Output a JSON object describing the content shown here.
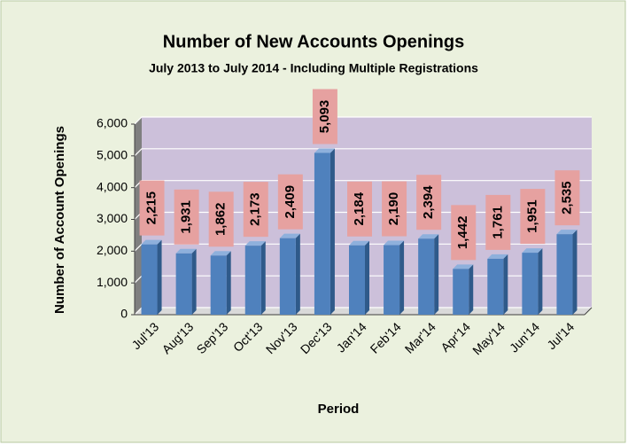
{
  "chart_data": {
    "type": "bar",
    "title": "Number of New Accounts Openings",
    "subtitle": "July 2013 to July 2014 - Including Multiple Registrations",
    "y_label": "Number of Account Openings",
    "x_label": "Period",
    "categories": [
      "Jul'13",
      "Aug'13",
      "Sep'13",
      "Oct'13",
      "Nov'13",
      "Dec'13",
      "Jan'14",
      "Feb'14",
      "Mar'14",
      "Apr'14",
      "May'14",
      "Jun'14",
      "Jul'14"
    ],
    "values": [
      2215,
      1931,
      1862,
      2173,
      2409,
      5093,
      2184,
      2190,
      2394,
      1442,
      1761,
      1951,
      2535
    ],
    "value_labels": [
      "2,215",
      "1,931",
      "1,862",
      "2,173",
      "2,409",
      "5,093",
      "2,184",
      "2,190",
      "2,394",
      "1,442",
      "1,761",
      "1,951",
      "2,535"
    ],
    "color": "#4f81bd",
    "ylim": [
      0,
      6000
    ],
    "yticks": [
      0,
      {
        "value": 1000,
        "label": "1,000"
      },
      {
        "value": 2000,
        "label": "2,000"
      },
      {
        "value": 3000,
        "label": "3,000"
      },
      {
        "value": 4000,
        "label": "4,000"
      },
      {
        "value": 5000,
        "label": "5,000"
      },
      {
        "value": 6000,
        "label": "6,000"
      }
    ],
    "grid": true
  }
}
